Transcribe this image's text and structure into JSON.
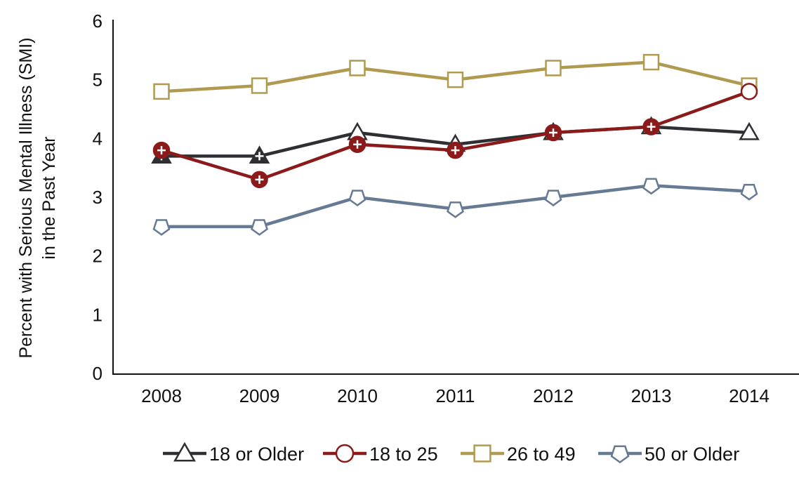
{
  "chart_data": {
    "type": "line",
    "title": "",
    "xlabel": "",
    "ylabel_lines": [
      "Percent with Serious Mental Illness (SMI)",
      "in the Past Year"
    ],
    "x": [
      "2008",
      "2009",
      "2010",
      "2011",
      "2012",
      "2013",
      "2014"
    ],
    "ylim": [
      0,
      6
    ],
    "yticks": [
      "0",
      "1",
      "2",
      "3",
      "4",
      "5",
      "6"
    ],
    "grid": false,
    "legend_position": "bottom",
    "series": [
      {
        "name": "18 or Older",
        "marker": "triangle",
        "color": "#2e2e33",
        "values": [
          3.7,
          3.7,
          4.1,
          3.9,
          4.1,
          4.2,
          4.1
        ],
        "significant": [
          true,
          true,
          false,
          false,
          false,
          false,
          false
        ]
      },
      {
        "name": "18 to 25",
        "marker": "circle",
        "color": "#8b1a1a",
        "values": [
          3.8,
          3.3,
          3.9,
          3.8,
          4.1,
          4.2,
          4.8
        ],
        "significant": [
          true,
          true,
          true,
          true,
          true,
          true,
          false
        ]
      },
      {
        "name": "26 to 49",
        "marker": "square",
        "color": "#b09a50",
        "values": [
          4.8,
          4.9,
          5.2,
          5.0,
          5.2,
          5.3,
          4.9
        ],
        "significant": [
          false,
          false,
          false,
          false,
          false,
          false,
          false
        ]
      },
      {
        "name": "50 or Older",
        "marker": "pentagon",
        "color": "#667a94",
        "values": [
          2.5,
          2.5,
          3.0,
          2.8,
          3.0,
          3.2,
          3.1
        ],
        "significant": [
          false,
          false,
          false,
          false,
          false,
          false,
          false
        ]
      }
    ]
  }
}
